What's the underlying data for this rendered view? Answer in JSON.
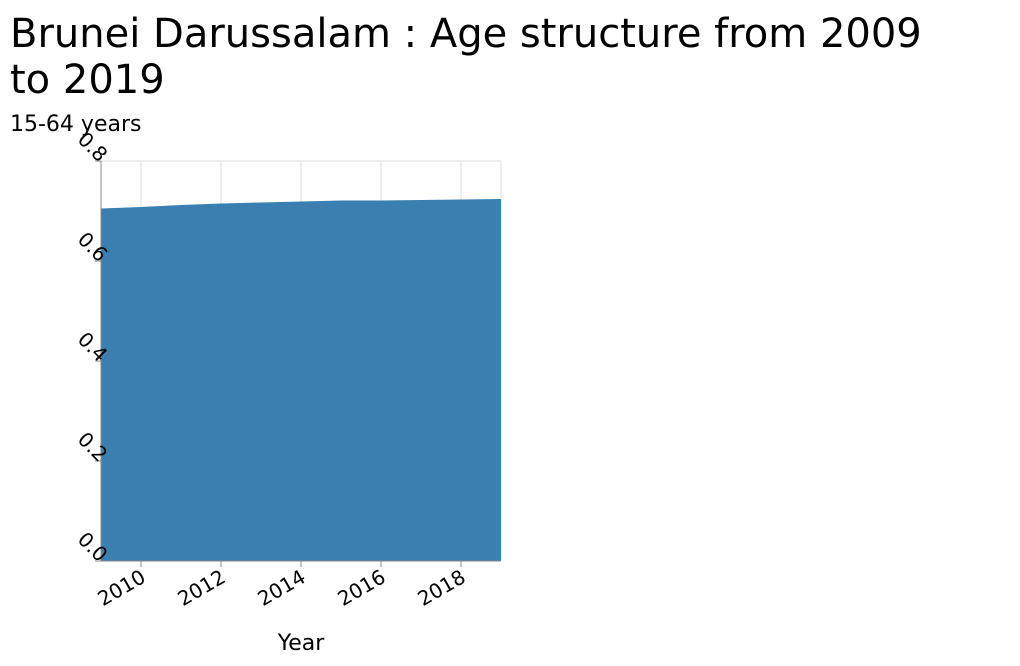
{
  "chart_data": {
    "type": "area",
    "title_lines": [
      "Brunei Darussalam : Age structure from 2009",
      "to 2019"
    ],
    "ylabel": "15-64 years",
    "xlabel": "Year",
    "x": [
      2009,
      2010,
      2011,
      2012,
      2013,
      2014,
      2015,
      2016,
      2017,
      2018,
      2019
    ],
    "series": [
      {
        "values": [
          0.705,
          0.708,
          0.712,
          0.715,
          0.717,
          0.719,
          0.721,
          0.721,
          0.722,
          0.723,
          0.724
        ]
      }
    ],
    "xlim": [
      2009,
      2019
    ],
    "ylim": [
      0,
      0.8
    ],
    "xticks": [
      2010,
      2012,
      2014,
      2016,
      2018
    ],
    "yticks": [
      0.0,
      0.2,
      0.4,
      0.6,
      0.8
    ],
    "ytick_labels": [
      "0.0",
      "0.2",
      "0.4",
      "0.6",
      "0.8"
    ],
    "grid": true,
    "fill_color": "#3a7fb0",
    "grid_color": "#dddddd",
    "axis_color": "#888888"
  }
}
